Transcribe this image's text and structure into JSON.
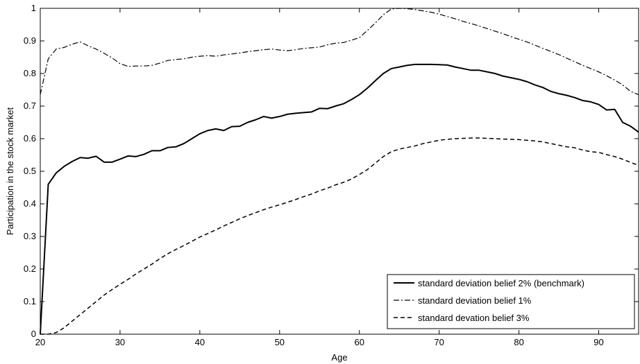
{
  "chart_data": {
    "type": "line",
    "title": "",
    "xlabel": "Age",
    "ylabel": "Participation in the stock market",
    "xlim": [
      20,
      95
    ],
    "ylim": [
      0,
      1
    ],
    "xticks": [
      20,
      30,
      40,
      50,
      60,
      70,
      80,
      90
    ],
    "yticks": [
      0,
      0.1,
      0.2,
      0.3,
      0.4,
      0.5,
      0.6,
      0.7,
      0.8,
      0.9,
      1
    ],
    "grid": false,
    "legend_position": "bottom-right",
    "series": [
      {
        "name": "standard deviation belief 2% (benchmark)",
        "style": "solid",
        "color": "#000000",
        "points": [
          [
            20,
            0
          ],
          [
            21,
            0.46
          ],
          [
            22,
            0.495
          ],
          [
            23,
            0.515
          ],
          [
            24,
            0.53
          ],
          [
            25,
            0.542
          ],
          [
            26,
            0.54
          ],
          [
            27,
            0.546
          ],
          [
            28,
            0.528
          ],
          [
            29,
            0.528
          ],
          [
            30,
            0.537
          ],
          [
            31,
            0.547
          ],
          [
            32,
            0.545
          ],
          [
            33,
            0.552
          ],
          [
            34,
            0.563
          ],
          [
            35,
            0.563
          ],
          [
            36,
            0.573
          ],
          [
            37,
            0.575
          ],
          [
            38,
            0.585
          ],
          [
            39,
            0.6
          ],
          [
            40,
            0.615
          ],
          [
            41,
            0.625
          ],
          [
            42,
            0.63
          ],
          [
            43,
            0.625
          ],
          [
            44,
            0.637
          ],
          [
            45,
            0.638
          ],
          [
            46,
            0.65
          ],
          [
            47,
            0.658
          ],
          [
            48,
            0.668
          ],
          [
            49,
            0.663
          ],
          [
            50,
            0.668
          ],
          [
            51,
            0.675
          ],
          [
            52,
            0.678
          ],
          [
            53,
            0.68
          ],
          [
            54,
            0.682
          ],
          [
            55,
            0.693
          ],
          [
            56,
            0.692
          ],
          [
            57,
            0.7
          ],
          [
            58,
            0.707
          ],
          [
            59,
            0.72
          ],
          [
            60,
            0.735
          ],
          [
            61,
            0.755
          ],
          [
            62,
            0.778
          ],
          [
            63,
            0.8
          ],
          [
            64,
            0.815
          ],
          [
            65,
            0.82
          ],
          [
            66,
            0.825
          ],
          [
            67,
            0.828
          ],
          [
            68,
            0.828
          ],
          [
            69,
            0.828
          ],
          [
            70,
            0.827
          ],
          [
            71,
            0.826
          ],
          [
            72,
            0.82
          ],
          [
            73,
            0.815
          ],
          [
            74,
            0.81
          ],
          [
            75,
            0.81
          ],
          [
            76,
            0.805
          ],
          [
            77,
            0.8
          ],
          [
            78,
            0.792
          ],
          [
            79,
            0.787
          ],
          [
            80,
            0.782
          ],
          [
            81,
            0.775
          ],
          [
            82,
            0.765
          ],
          [
            83,
            0.757
          ],
          [
            84,
            0.745
          ],
          [
            85,
            0.738
          ],
          [
            86,
            0.733
          ],
          [
            87,
            0.726
          ],
          [
            88,
            0.717
          ],
          [
            89,
            0.713
          ],
          [
            90,
            0.705
          ],
          [
            91,
            0.688
          ],
          [
            92,
            0.69
          ],
          [
            93,
            0.65
          ],
          [
            94,
            0.638
          ],
          [
            95,
            0.62
          ]
        ]
      },
      {
        "name": "standard deviation belief 1%",
        "style": "dashdot",
        "color": "#000000",
        "points": [
          [
            20,
            0.735
          ],
          [
            21,
            0.845
          ],
          [
            22,
            0.875
          ],
          [
            23,
            0.88
          ],
          [
            24,
            0.89
          ],
          [
            25,
            0.897
          ],
          [
            26,
            0.885
          ],
          [
            27,
            0.875
          ],
          [
            28,
            0.862
          ],
          [
            29,
            0.848
          ],
          [
            30,
            0.83
          ],
          [
            31,
            0.822
          ],
          [
            32,
            0.823
          ],
          [
            33,
            0.823
          ],
          [
            34,
            0.825
          ],
          [
            35,
            0.832
          ],
          [
            36,
            0.84
          ],
          [
            37,
            0.843
          ],
          [
            38,
            0.845
          ],
          [
            39,
            0.85
          ],
          [
            40,
            0.853
          ],
          [
            41,
            0.855
          ],
          [
            42,
            0.853
          ],
          [
            43,
            0.857
          ],
          [
            44,
            0.86
          ],
          [
            45,
            0.863
          ],
          [
            46,
            0.867
          ],
          [
            47,
            0.87
          ],
          [
            48,
            0.873
          ],
          [
            49,
            0.875
          ],
          [
            50,
            0.872
          ],
          [
            51,
            0.87
          ],
          [
            52,
            0.873
          ],
          [
            53,
            0.877
          ],
          [
            54,
            0.879
          ],
          [
            55,
            0.881
          ],
          [
            56,
            0.888
          ],
          [
            57,
            0.893
          ],
          [
            58,
            0.895
          ],
          [
            59,
            0.902
          ],
          [
            60,
            0.91
          ],
          [
            61,
            0.932
          ],
          [
            62,
            0.955
          ],
          [
            63,
            0.98
          ],
          [
            64,
            0.998
          ],
          [
            65,
            1.0
          ],
          [
            66,
            0.999
          ],
          [
            67,
            0.996
          ],
          [
            68,
            0.992
          ],
          [
            69,
            0.988
          ],
          [
            70,
            0.982
          ],
          [
            71,
            0.975
          ],
          [
            72,
            0.968
          ],
          [
            73,
            0.96
          ],
          [
            74,
            0.953
          ],
          [
            75,
            0.946
          ],
          [
            76,
            0.938
          ],
          [
            77,
            0.93
          ],
          [
            78,
            0.922
          ],
          [
            79,
            0.913
          ],
          [
            80,
            0.905
          ],
          [
            81,
            0.897
          ],
          [
            82,
            0.887
          ],
          [
            83,
            0.877
          ],
          [
            84,
            0.868
          ],
          [
            85,
            0.858
          ],
          [
            86,
            0.847
          ],
          [
            87,
            0.836
          ],
          [
            88,
            0.825
          ],
          [
            89,
            0.815
          ],
          [
            90,
            0.805
          ],
          [
            91,
            0.793
          ],
          [
            92,
            0.78
          ],
          [
            93,
            0.765
          ],
          [
            94,
            0.745
          ],
          [
            95,
            0.735
          ]
        ]
      },
      {
        "name": "standard devation belief 3%",
        "style": "dashed",
        "color": "#000000",
        "points": [
          [
            20,
            0
          ],
          [
            21,
            0
          ],
          [
            22,
            0.005
          ],
          [
            23,
            0.02
          ],
          [
            24,
            0.04
          ],
          [
            25,
            0.06
          ],
          [
            26,
            0.08
          ],
          [
            27,
            0.1
          ],
          [
            28,
            0.12
          ],
          [
            29,
            0.137
          ],
          [
            30,
            0.153
          ],
          [
            31,
            0.168
          ],
          [
            32,
            0.185
          ],
          [
            33,
            0.2
          ],
          [
            34,
            0.215
          ],
          [
            35,
            0.232
          ],
          [
            36,
            0.247
          ],
          [
            37,
            0.26
          ],
          [
            38,
            0.272
          ],
          [
            39,
            0.285
          ],
          [
            40,
            0.298
          ],
          [
            41,
            0.309
          ],
          [
            42,
            0.32
          ],
          [
            43,
            0.332
          ],
          [
            44,
            0.343
          ],
          [
            45,
            0.354
          ],
          [
            46,
            0.364
          ],
          [
            47,
            0.373
          ],
          [
            48,
            0.382
          ],
          [
            49,
            0.39
          ],
          [
            50,
            0.397
          ],
          [
            51,
            0.405
          ],
          [
            52,
            0.413
          ],
          [
            53,
            0.422
          ],
          [
            54,
            0.43
          ],
          [
            55,
            0.44
          ],
          [
            56,
            0.448
          ],
          [
            57,
            0.458
          ],
          [
            58,
            0.466
          ],
          [
            59,
            0.476
          ],
          [
            60,
            0.49
          ],
          [
            61,
            0.505
          ],
          [
            62,
            0.525
          ],
          [
            63,
            0.545
          ],
          [
            64,
            0.56
          ],
          [
            65,
            0.568
          ],
          [
            66,
            0.573
          ],
          [
            67,
            0.578
          ],
          [
            68,
            0.585
          ],
          [
            69,
            0.59
          ],
          [
            70,
            0.595
          ],
          [
            71,
            0.598
          ],
          [
            72,
            0.6
          ],
          [
            73,
            0.601
          ],
          [
            74,
            0.602
          ],
          [
            75,
            0.602
          ],
          [
            76,
            0.601
          ],
          [
            77,
            0.6
          ],
          [
            78,
            0.599
          ],
          [
            79,
            0.598
          ],
          [
            80,
            0.597
          ],
          [
            81,
            0.595
          ],
          [
            82,
            0.593
          ],
          [
            83,
            0.59
          ],
          [
            84,
            0.585
          ],
          [
            85,
            0.58
          ],
          [
            86,
            0.575
          ],
          [
            87,
            0.572
          ],
          [
            88,
            0.565
          ],
          [
            89,
            0.56
          ],
          [
            90,
            0.558
          ],
          [
            91,
            0.551
          ],
          [
            92,
            0.545
          ],
          [
            93,
            0.537
          ],
          [
            94,
            0.527
          ],
          [
            95,
            0.518
          ]
        ]
      }
    ]
  }
}
